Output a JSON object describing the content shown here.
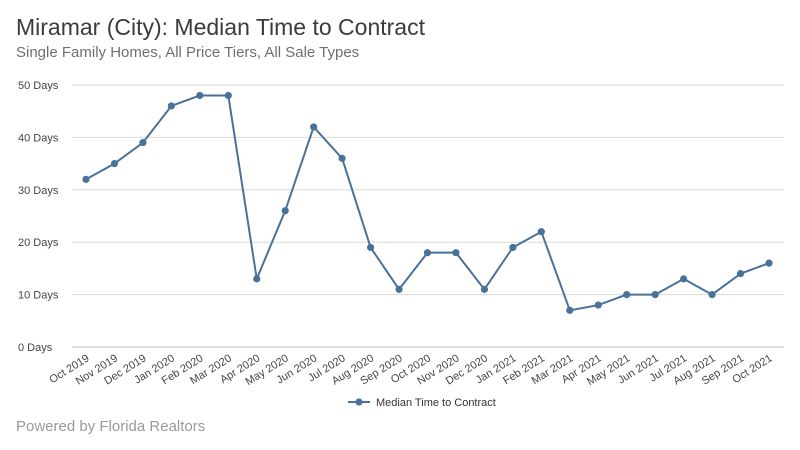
{
  "header": {
    "title": "Miramar (City): Median Time to Contract",
    "subtitle": "Single Family Homes, All Price Tiers, All Sale Types"
  },
  "footer": {
    "credit": "Powered by Florida Realtors"
  },
  "colors": {
    "series": "#4a7298",
    "grid": "#d9d9d9",
    "axis": "#444444"
  },
  "chart_data": {
    "type": "line",
    "title": "Miramar (City): Median Time to Contract",
    "subtitle": "Single Family Homes, All Price Tiers, All Sale Types",
    "xlabel": "",
    "ylabel": "",
    "categories": [
      "Oct 2019",
      "Nov 2019",
      "Dec 2019",
      "Jan 2020",
      "Feb 2020",
      "Mar 2020",
      "Apr 2020",
      "May 2020",
      "Jun 2020",
      "Jul 2020",
      "Aug 2020",
      "Sep 2020",
      "Oct 2020",
      "Nov 2020",
      "Dec 2020",
      "Jan 2021",
      "Feb 2021",
      "Mar 2021",
      "Apr 2021",
      "May 2021",
      "Jun 2021",
      "Jul 2021",
      "Aug 2021",
      "Sep 2021",
      "Oct 2021"
    ],
    "series": [
      {
        "name": "Median Time to Contract",
        "values": [
          32,
          35,
          39,
          46,
          48,
          48,
          13,
          26,
          42,
          36,
          19,
          11,
          18,
          18,
          11,
          19,
          22,
          7,
          8,
          10,
          10,
          13,
          10,
          14,
          16
        ]
      }
    ],
    "ylim": [
      0,
      50
    ],
    "yticks": [
      0,
      10,
      20,
      30,
      40,
      50
    ],
    "ytick_labels": [
      "0 Days",
      "10 Days",
      "20 Days",
      "30 Days",
      "40 Days",
      "50 Days"
    ],
    "grid": true,
    "legend": "bottom-center"
  }
}
